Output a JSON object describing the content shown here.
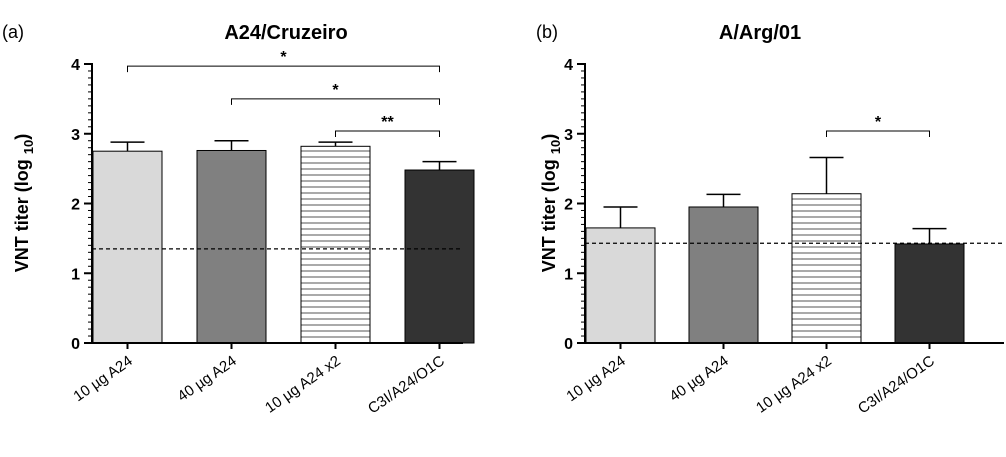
{
  "colors": {
    "light_gray": "#d9d9d9",
    "medium_gray": "#808080",
    "hatched": "#e0e0e0",
    "dark": "#333333"
  },
  "chart_data": [
    {
      "type": "bar",
      "panel_letter": "(a)",
      "title": "A24/Cruzeiro",
      "ylabel": "VNT titer (log 10)",
      "ylabel_main": "VNT titer (log ",
      "ylabel_sub": "10",
      "ylabel_close": ")",
      "ylim": [
        0,
        4
      ],
      "yticks": [
        "0",
        "1",
        "2",
        "3",
        "4"
      ],
      "categories": [
        "10 µg A24",
        "40 µg A24",
        "10 µg A24 x2",
        "C3I/A24/O1C"
      ],
      "values": [
        2.75,
        2.76,
        2.82,
        2.48
      ],
      "errors": [
        0.13,
        0.14,
        0.06,
        0.12
      ],
      "fills": [
        "light_gray",
        "medium_gray",
        "hatched",
        "dark"
      ],
      "threshold": 1.35,
      "significance": [
        {
          "from": 0,
          "to": 3,
          "label": "*",
          "level": 3.97
        },
        {
          "from": 1,
          "to": 3,
          "label": "*",
          "level": 3.5
        },
        {
          "from": 2,
          "to": 3,
          "label": "**",
          "level": 3.04
        }
      ]
    },
    {
      "type": "bar",
      "panel_letter": "(b)",
      "title": "A/Arg/01",
      "ylabel": "VNT titer (log 10)",
      "ylabel_main": "VNT titer (log ",
      "ylabel_sub": "10",
      "ylabel_close": ")",
      "ylim": [
        0,
        4
      ],
      "yticks": [
        "0",
        "1",
        "2",
        "3",
        "4"
      ],
      "categories": [
        "10 µg A24",
        "40 µg A24",
        "10 µg A24 x2",
        "C3I/A24/O1C"
      ],
      "values": [
        1.65,
        1.95,
        2.14,
        1.42
      ],
      "errors": [
        0.3,
        0.18,
        0.52,
        0.22
      ],
      "fills": [
        "light_gray",
        "medium_gray",
        "hatched",
        "dark"
      ],
      "threshold": 1.43,
      "significance": [
        {
          "from": 2,
          "to": 3,
          "label": "*",
          "level": 3.04
        }
      ]
    }
  ]
}
